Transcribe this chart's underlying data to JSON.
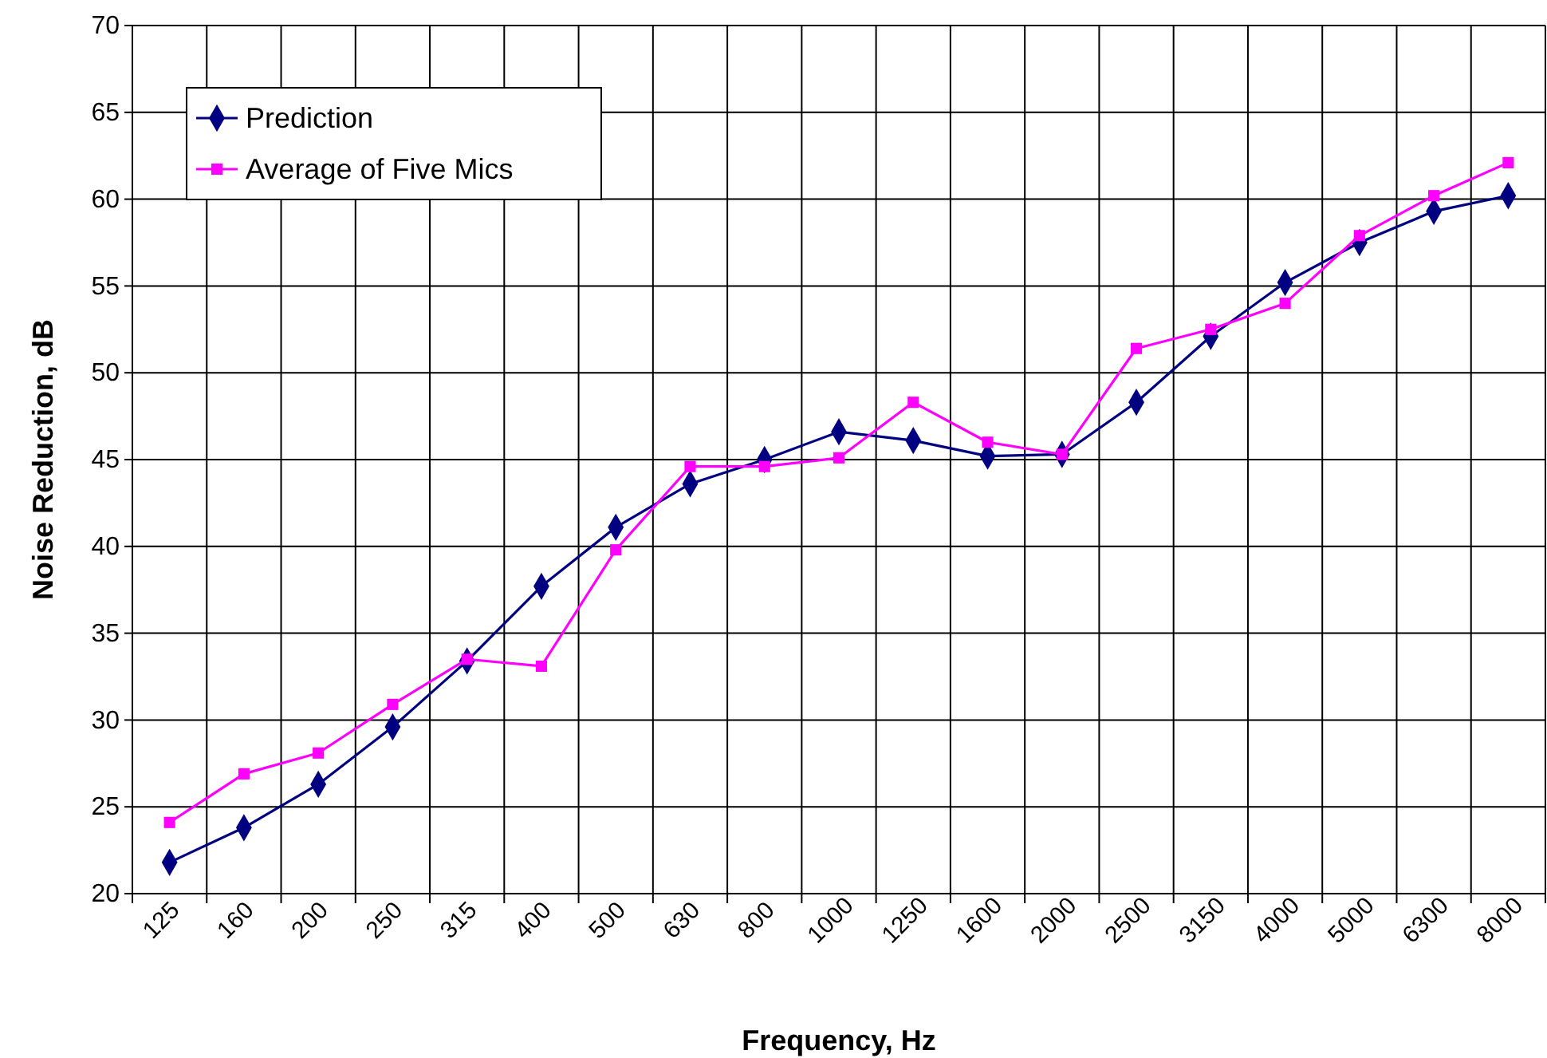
{
  "chart_data": {
    "type": "line",
    "xlabel": "Frequency, Hz",
    "ylabel": "Noise Reduction, dB",
    "categories": [
      "125",
      "160",
      "200",
      "250",
      "315",
      "400",
      "500",
      "630",
      "800",
      "1000",
      "1250",
      "1600",
      "2000",
      "2500",
      "3150",
      "4000",
      "5000",
      "6300",
      "8000"
    ],
    "series": [
      {
        "name": "Prediction",
        "color": "#000080",
        "marker": "diamond",
        "values": [
          21.8,
          23.8,
          26.3,
          29.6,
          33.4,
          37.7,
          41.1,
          43.6,
          45.0,
          46.6,
          46.1,
          45.2,
          45.3,
          48.3,
          52.1,
          55.2,
          57.5,
          59.3,
          60.2
        ]
      },
      {
        "name": "Average of Five Mics",
        "color": "#ff00ff",
        "marker": "square",
        "values": [
          24.1,
          26.9,
          28.1,
          30.9,
          33.5,
          33.1,
          39.8,
          44.6,
          44.6,
          45.1,
          48.3,
          46.0,
          45.3,
          51.4,
          52.5,
          54.0,
          57.9,
          60.2,
          62.1
        ]
      }
    ],
    "ylim": [
      20,
      70
    ],
    "yticks": [
      20,
      25,
      30,
      35,
      40,
      45,
      50,
      55,
      60,
      65,
      70
    ],
    "grid": true,
    "legend": "top left",
    "line_style": "solid"
  }
}
